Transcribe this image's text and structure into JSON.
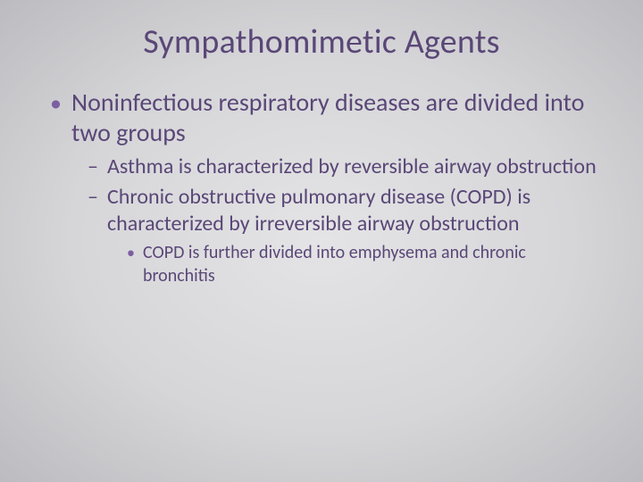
{
  "slide": {
    "title": "Sympathomimetic Agents",
    "background": {
      "type": "radial-gradient",
      "center_color": "#e4e4e6",
      "mid_color": "#d6d6d9",
      "edge_color": "#bcbcc0"
    },
    "text_color": "#5a4777",
    "bullet_color": "#7b5fa0",
    "fonts": {
      "family": "Calibri",
      "title_size_pt": 38,
      "lvl1_size_pt": 28,
      "lvl2_size_pt": 24,
      "lvl3_size_pt": 20
    },
    "bullets": [
      {
        "text": "Noninfectious respiratory diseases are divided into two groups",
        "children": [
          {
            "text": "Asthma is characterized by reversible airway obstruction",
            "children": []
          },
          {
            "text": "Chronic obstructive pulmonary disease (COPD) is characterized by irreversible airway obstruction",
            "children": [
              {
                "text": "COPD is further divided into emphysema and chronic bronchitis"
              }
            ]
          }
        ]
      }
    ]
  }
}
